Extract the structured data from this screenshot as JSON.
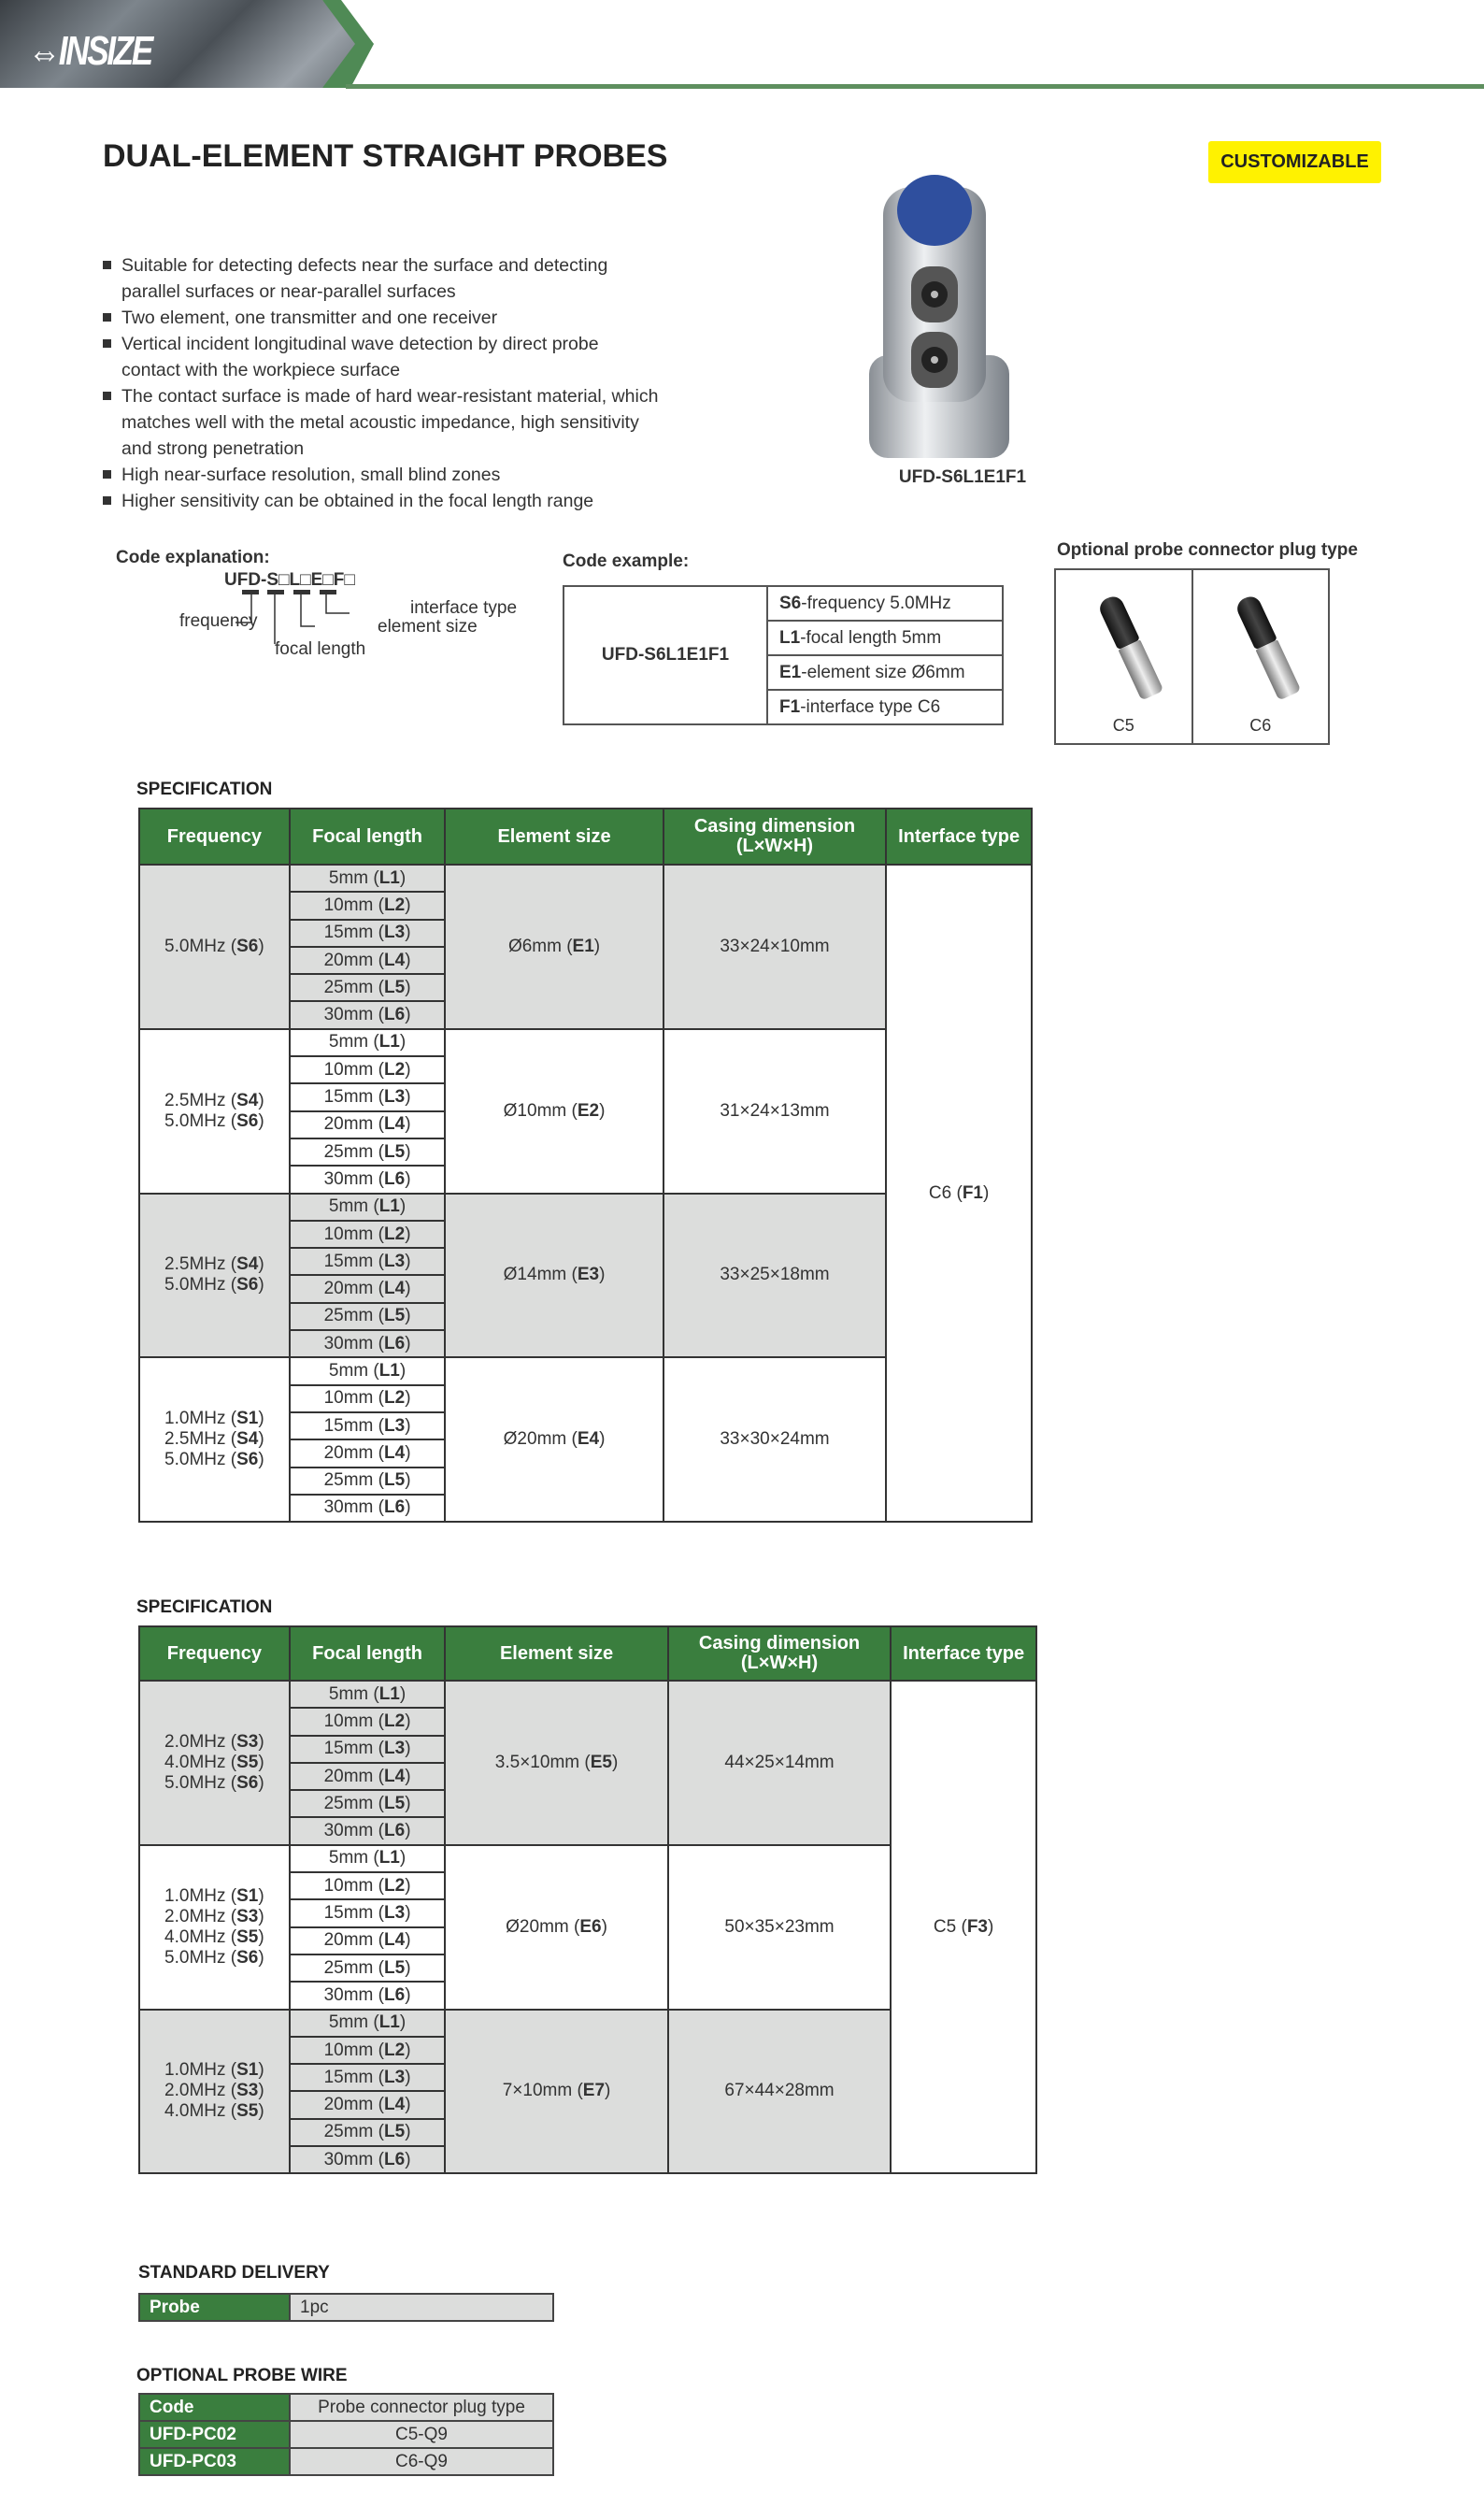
{
  "header": {
    "logo": "INSIZE"
  },
  "title": "DUAL-ELEMENT STRAIGHT PROBES",
  "badge": "CUSTOMIZABLE",
  "features": [
    "Suitable for detecting defects near the surface and detecting parallel surfaces or near-parallel surfaces",
    "Two element, one transmitter and one receiver",
    "Vertical incident longitudinal wave detection by direct probe contact with the workpiece surface",
    "The contact surface is made of hard wear-resistant material, which matches well with the metal acoustic impedance, high sensitivity and strong penetration",
    "High near-surface resolution, small blind zones",
    "Higher sensitivity can be obtained in the focal length range"
  ],
  "product": {
    "model": "UFD-S6L1E1F1"
  },
  "code_explanation": {
    "title": "Code explanation:",
    "code": "UFD-S□L□E□F□",
    "frequency": "frequency",
    "focal_length": "focal length",
    "element_size": "element size",
    "interface_type": "interface type"
  },
  "code_example": {
    "title": "Code example:",
    "model": "UFD-S6L1E1F1",
    "rows": [
      {
        "code": "S6",
        "desc": "-frequency 5.0MHz"
      },
      {
        "code": "L1",
        "desc": "-focal length 5mm"
      },
      {
        "code": "E1",
        "desc": "-element size Ø6mm"
      },
      {
        "code": "F1",
        "desc": "-interface type C6"
      }
    ]
  },
  "connectors": {
    "title": "Optional probe connector plug type",
    "items": [
      "C5",
      "C6"
    ]
  },
  "spec_label": "SPECIFICATION",
  "spec_headers": [
    "Frequency",
    "Focal length",
    "Element size",
    "Casing dimension",
    "(L×W×H)",
    "Interface type"
  ],
  "focal_lengths": [
    {
      "t": "5mm",
      "c": "L1"
    },
    {
      "t": "10mm",
      "c": "L2"
    },
    {
      "t": "15mm",
      "c": "L3"
    },
    {
      "t": "20mm",
      "c": "L4"
    },
    {
      "t": "25mm",
      "c": "L5"
    },
    {
      "t": "30mm",
      "c": "L6"
    }
  ],
  "spec_tables": [
    {
      "interface": {
        "t": "C6",
        "c": "F1"
      },
      "groups": [
        {
          "freq": [
            {
              "t": "5.0MHz",
              "c": "S6"
            }
          ],
          "element": {
            "t": "Ø6mm",
            "c": "E1"
          },
          "casing": "33×24×10mm"
        },
        {
          "freq": [
            {
              "t": "2.5MHz",
              "c": "S4"
            },
            {
              "t": "5.0MHz",
              "c": "S6"
            }
          ],
          "element": {
            "t": "Ø10mm",
            "c": "E2"
          },
          "casing": "31×24×13mm"
        },
        {
          "freq": [
            {
              "t": "2.5MHz",
              "c": "S4"
            },
            {
              "t": "5.0MHz",
              "c": "S6"
            }
          ],
          "element": {
            "t": "Ø14mm",
            "c": "E3"
          },
          "casing": "33×25×18mm"
        },
        {
          "freq": [
            {
              "t": "1.0MHz",
              "c": "S1"
            },
            {
              "t": "2.5MHz",
              "c": "S4"
            },
            {
              "t": "5.0MHz",
              "c": "S6"
            }
          ],
          "element": {
            "t": "Ø20mm",
            "c": "E4"
          },
          "casing": "33×30×24mm"
        }
      ]
    },
    {
      "interface": {
        "t": "C5",
        "c": "F3"
      },
      "groups": [
        {
          "freq": [
            {
              "t": "2.0MHz",
              "c": "S3"
            },
            {
              "t": "4.0MHz",
              "c": "S5"
            },
            {
              "t": "5.0MHz",
              "c": "S6"
            }
          ],
          "element": {
            "t": "3.5×10mm",
            "c": "E5"
          },
          "casing": "44×25×14mm"
        },
        {
          "freq": [
            {
              "t": "1.0MHz",
              "c": "S1"
            },
            {
              "t": "2.0MHz",
              "c": "S3"
            },
            {
              "t": "4.0MHz",
              "c": "S5"
            },
            {
              "t": "5.0MHz",
              "c": "S6"
            }
          ],
          "element": {
            "t": "Ø20mm",
            "c": "E6"
          },
          "casing": "50×35×23mm"
        },
        {
          "freq": [
            {
              "t": "1.0MHz",
              "c": "S1"
            },
            {
              "t": "2.0MHz",
              "c": "S3"
            },
            {
              "t": "4.0MHz",
              "c": "S5"
            }
          ],
          "element": {
            "t": "7×10mm",
            "c": "E7"
          },
          "casing": "67×44×28mm"
        }
      ]
    }
  ],
  "standard_delivery": {
    "title": "STANDARD DELIVERY",
    "item": "Probe",
    "qty": "1pc"
  },
  "optional_wire": {
    "title": "OPTIONAL PROBE WIRE",
    "header": [
      "Code",
      "Probe connector plug type"
    ],
    "rows": [
      [
        "UFD-PC02",
        "C5-Q9"
      ],
      [
        "UFD-PC03",
        "C6-Q9"
      ]
    ]
  },
  "colors": {
    "green": "#3a7e3e",
    "gray": "#dcdddc",
    "badge": "#fff200"
  }
}
